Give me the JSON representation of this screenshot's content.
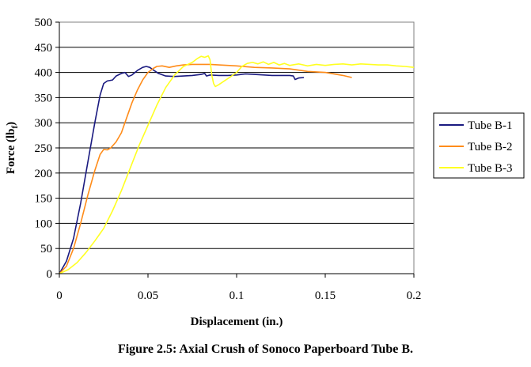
{
  "caption": "Figure 2.5: Axial Crush of Sonoco Paperboard Tube B.",
  "chart_data": {
    "type": "line",
    "title": "",
    "xlabel": "Displacement (in.)",
    "ylabel_main": "Force (lb",
    "ylabel_sub": "f",
    "ylabel_close": ")",
    "xlim": [
      0,
      0.2
    ],
    "ylim": [
      0,
      500
    ],
    "xticks": [
      0,
      0.05,
      0.1,
      0.15,
      0.2
    ],
    "xtick_labels": [
      "0",
      "0.05",
      "0.1",
      "0.15",
      "0.2"
    ],
    "yticks": [
      0,
      50,
      100,
      150,
      200,
      250,
      300,
      350,
      400,
      450,
      500
    ],
    "ytick_labels": [
      "0",
      "50",
      "100",
      "150",
      "200",
      "250",
      "300",
      "350",
      "400",
      "450",
      "500"
    ],
    "grid": "horizontal",
    "legend_position": "right",
    "series": [
      {
        "name": "Tube B-1",
        "color": "#1a1a80",
        "points": [
          [
            0,
            0
          ],
          [
            0.004,
            25
          ],
          [
            0.008,
            70
          ],
          [
            0.012,
            140
          ],
          [
            0.016,
            220
          ],
          [
            0.02,
            300
          ],
          [
            0.023,
            355
          ],
          [
            0.025,
            378
          ],
          [
            0.027,
            383
          ],
          [
            0.03,
            385
          ],
          [
            0.032,
            393
          ],
          [
            0.035,
            398
          ],
          [
            0.037,
            400
          ],
          [
            0.039,
            392
          ],
          [
            0.041,
            395
          ],
          [
            0.044,
            404
          ],
          [
            0.047,
            410
          ],
          [
            0.049,
            412
          ],
          [
            0.051,
            410
          ],
          [
            0.053,
            405
          ],
          [
            0.056,
            398
          ],
          [
            0.06,
            393
          ],
          [
            0.065,
            392
          ],
          [
            0.07,
            393
          ],
          [
            0.075,
            394
          ],
          [
            0.08,
            396
          ],
          [
            0.082,
            398
          ],
          [
            0.083,
            393
          ],
          [
            0.085,
            395
          ],
          [
            0.09,
            394
          ],
          [
            0.095,
            394
          ],
          [
            0.1,
            395
          ],
          [
            0.105,
            397
          ],
          [
            0.11,
            396
          ],
          [
            0.12,
            394
          ],
          [
            0.13,
            394
          ],
          [
            0.132,
            393
          ],
          [
            0.133,
            386
          ],
          [
            0.135,
            389
          ],
          [
            0.138,
            390
          ]
        ]
      },
      {
        "name": "Tube B-2",
        "color": "#ff8c1a",
        "points": [
          [
            0,
            0
          ],
          [
            0.004,
            15
          ],
          [
            0.008,
            50
          ],
          [
            0.012,
            100
          ],
          [
            0.016,
            155
          ],
          [
            0.02,
            205
          ],
          [
            0.023,
            237
          ],
          [
            0.025,
            247
          ],
          [
            0.027,
            246
          ],
          [
            0.029,
            250
          ],
          [
            0.032,
            262
          ],
          [
            0.035,
            280
          ],
          [
            0.038,
            310
          ],
          [
            0.041,
            340
          ],
          [
            0.044,
            365
          ],
          [
            0.047,
            385
          ],
          [
            0.05,
            400
          ],
          [
            0.053,
            408
          ],
          [
            0.055,
            412
          ],
          [
            0.058,
            413
          ],
          [
            0.062,
            410
          ],
          [
            0.066,
            413
          ],
          [
            0.07,
            415
          ],
          [
            0.075,
            416
          ],
          [
            0.08,
            416
          ],
          [
            0.085,
            416
          ],
          [
            0.09,
            415
          ],
          [
            0.095,
            414
          ],
          [
            0.1,
            413
          ],
          [
            0.11,
            410
          ],
          [
            0.12,
            409
          ],
          [
            0.13,
            407
          ],
          [
            0.14,
            402
          ],
          [
            0.15,
            400
          ],
          [
            0.16,
            394
          ],
          [
            0.165,
            390
          ]
        ]
      },
      {
        "name": "Tube B-3",
        "color": "#ffff22",
        "points": [
          [
            0,
            0
          ],
          [
            0.005,
            8
          ],
          [
            0.01,
            22
          ],
          [
            0.015,
            42
          ],
          [
            0.02,
            65
          ],
          [
            0.025,
            90
          ],
          [
            0.03,
            125
          ],
          [
            0.035,
            165
          ],
          [
            0.04,
            210
          ],
          [
            0.045,
            255
          ],
          [
            0.05,
            295
          ],
          [
            0.055,
            335
          ],
          [
            0.06,
            370
          ],
          [
            0.065,
            395
          ],
          [
            0.07,
            412
          ],
          [
            0.075,
            420
          ],
          [
            0.078,
            428
          ],
          [
            0.08,
            432
          ],
          [
            0.082,
            430
          ],
          [
            0.084,
            433
          ],
          [
            0.085,
            425
          ],
          [
            0.086,
            395
          ],
          [
            0.087,
            378
          ],
          [
            0.088,
            372
          ],
          [
            0.09,
            376
          ],
          [
            0.093,
            383
          ],
          [
            0.096,
            390
          ],
          [
            0.1,
            400
          ],
          [
            0.103,
            412
          ],
          [
            0.106,
            418
          ],
          [
            0.109,
            420
          ],
          [
            0.112,
            417
          ],
          [
            0.115,
            421
          ],
          [
            0.118,
            416
          ],
          [
            0.121,
            420
          ],
          [
            0.124,
            415
          ],
          [
            0.127,
            418
          ],
          [
            0.13,
            414
          ],
          [
            0.135,
            417
          ],
          [
            0.14,
            413
          ],
          [
            0.145,
            416
          ],
          [
            0.15,
            414
          ],
          [
            0.155,
            416
          ],
          [
            0.16,
            417
          ],
          [
            0.165,
            415
          ],
          [
            0.17,
            417
          ],
          [
            0.175,
            416
          ],
          [
            0.18,
            415
          ],
          [
            0.185,
            415
          ],
          [
            0.19,
            413
          ],
          [
            0.195,
            412
          ],
          [
            0.2,
            410
          ]
        ]
      }
    ]
  }
}
